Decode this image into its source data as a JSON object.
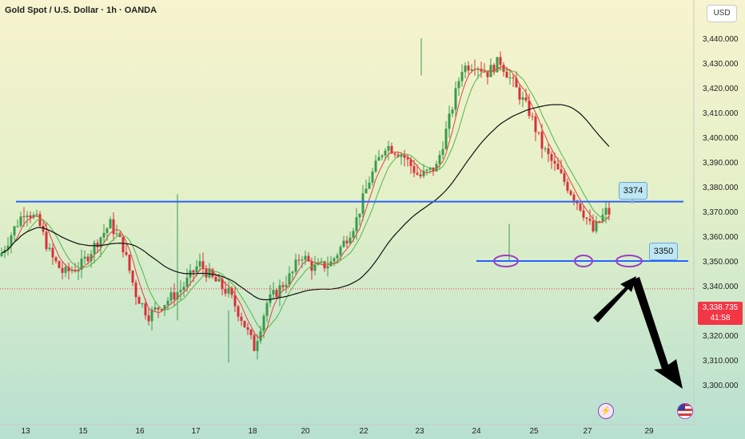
{
  "header": {
    "title": "Gold Spot / U.S. Dollar · 1h · OANDA",
    "currency": "USD"
  },
  "price_tag": {
    "price": "3,338.735",
    "countdown": "41:58"
  },
  "annotations": {
    "level_high": "3374",
    "level_low": "3350"
  },
  "colors": {
    "level_line": "#2962ff",
    "up_candle": "#3a9a4c",
    "down_candle": "#d9303a",
    "ma_fast": "#e2423f",
    "ma_green": "#55b547",
    "ma_slow": "#111111",
    "marker": "#9c3fc4",
    "arrow": "#000000",
    "last_price": "#f23645"
  },
  "icons": {
    "event_icon": "lightning-icon",
    "flag_icon": "us-flag-icon"
  },
  "chart_data": {
    "type": "candlestick",
    "title": "Gold Spot / U.S. Dollar · 1h · OANDA",
    "x_ticks": [
      "13",
      "15",
      "16",
      "17",
      "18",
      "20",
      "22",
      "23",
      "24",
      "25",
      "27",
      "29"
    ],
    "y_ticks": [
      "3,440.000",
      "3,430.000",
      "3,420.000",
      "3,410.000",
      "3,400.000",
      "3,390.000",
      "3,380.000",
      "3,370.000",
      "3,360.000",
      "3,350.000",
      "3,340.000",
      "3,330.000",
      "3,320.000",
      "3,310.000",
      "3,300.000"
    ],
    "ylim": [
      3300,
      3440
    ],
    "price_path": [
      [
        0,
        3352
      ],
      [
        0.3,
        3362
      ],
      [
        0.6,
        3371
      ],
      [
        0.9,
        3366
      ],
      [
        1.2,
        3352
      ],
      [
        1.5,
        3345
      ],
      [
        1.9,
        3348
      ],
      [
        2.3,
        3358
      ],
      [
        2.6,
        3365
      ],
      [
        2.9,
        3356
      ],
      [
        3.2,
        3337
      ],
      [
        3.5,
        3328
      ],
      [
        3.8,
        3332
      ],
      [
        4.3,
        3339
      ],
      [
        4.7,
        3349
      ],
      [
        5.0,
        3343
      ],
      [
        5.4,
        3337
      ],
      [
        5.7,
        3327
      ],
      [
        6.0,
        3315
      ],
      [
        6.3,
        3333
      ],
      [
        6.6,
        3339
      ],
      [
        6.9,
        3345
      ],
      [
        7.1,
        3353
      ],
      [
        7.4,
        3347
      ],
      [
        7.8,
        3349
      ],
      [
        8.1,
        3357
      ],
      [
        8.4,
        3366
      ],
      [
        8.7,
        3382
      ],
      [
        9.1,
        3397
      ],
      [
        9.5,
        3393
      ],
      [
        9.9,
        3384
      ],
      [
        10.3,
        3388
      ],
      [
        10.6,
        3407
      ],
      [
        10.9,
        3428
      ],
      [
        11.2,
        3430
      ],
      [
        11.5,
        3426
      ],
      [
        11.8,
        3431
      ],
      [
        12.1,
        3422
      ],
      [
        12.5,
        3410
      ],
      [
        12.8,
        3396
      ],
      [
        13.1,
        3388
      ],
      [
        13.4,
        3380
      ],
      [
        13.7,
        3372
      ],
      [
        14.0,
        3362
      ],
      [
        14.3,
        3370
      ],
      [
        14.6,
        3368
      ],
      [
        14.9,
        3362
      ],
      [
        15.2,
        3350
      ],
      [
        15.5,
        3340
      ],
      [
        15.8,
        3330
      ],
      [
        16.1,
        3334
      ],
      [
        16.3,
        3332
      ],
      [
        16.6,
        3339
      ]
    ],
    "levels": [
      3374,
      3350
    ],
    "series": [
      {
        "name": "",
        "type": "line",
        "color": "#e2423f"
      },
      {
        "name": "",
        "type": "line",
        "color": "#55b547"
      },
      {
        "name": "",
        "type": "line",
        "color": "#111111"
      }
    ],
    "last_price": 3338.735,
    "grid": false
  }
}
